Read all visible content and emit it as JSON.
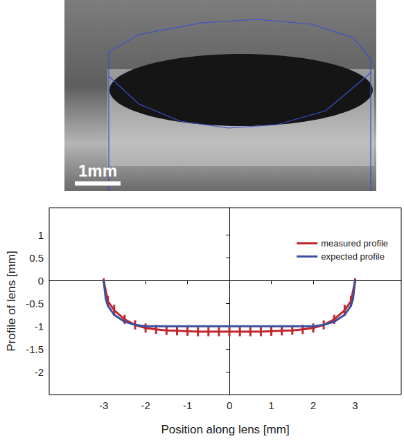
{
  "image": {
    "scale_bar_label": "1mm"
  },
  "chart_data": {
    "type": "line",
    "x_label": "Position along lens [mm]",
    "y_label": "Profile of lens [mm]",
    "xlim": [
      -4.3,
      4.1
    ],
    "ylim": [
      -2.5,
      1.6
    ],
    "xticks": [
      -3,
      -2,
      -1,
      0,
      1,
      2,
      3
    ],
    "yticks": [
      -2,
      -1.5,
      -1,
      -0.5,
      0,
      0.5,
      1
    ],
    "grid": false,
    "legend": "upper right",
    "series": [
      {
        "name": "measured profile",
        "color": "#c0272d",
        "line_style": "solid",
        "x": [
          -3,
          -2.9,
          -2.75,
          -2.5,
          -2.25,
          -2,
          -1.75,
          -1.5,
          -1.25,
          -1,
          -0.75,
          -0.5,
          -0.25,
          0,
          0.25,
          0.5,
          0.75,
          1,
          1.25,
          1.5,
          1.75,
          2,
          2.25,
          2.5,
          2.75,
          2.9,
          3
        ],
        "values": [
          0,
          -0.45,
          -0.65,
          -0.85,
          -0.97,
          -1.04,
          -1.07,
          -1.09,
          -1.1,
          -1.11,
          -1.12,
          -1.12,
          -1.12,
          -1.12,
          -1.12,
          -1.12,
          -1.12,
          -1.11,
          -1.1,
          -1.09,
          -1.07,
          -1.04,
          -0.97,
          -0.85,
          -0.65,
          -0.45,
          0
        ],
        "errors": [
          0.05,
          0.12,
          0.12,
          0.1,
          0.1,
          0.1,
          0.1,
          0.1,
          0.1,
          0.1,
          0.1,
          0.1,
          0.1,
          0.1,
          0.1,
          0.1,
          0.1,
          0.1,
          0.1,
          0.1,
          0.1,
          0.1,
          0.1,
          0.1,
          0.12,
          0.12,
          0.05
        ]
      },
      {
        "name": "expected profile",
        "color": "#3a4fa0",
        "line_style": "solid",
        "x": [
          -3,
          -2.95,
          -2.9,
          -2.75,
          -2.5,
          -2.25,
          -2,
          -1,
          0,
          1,
          2,
          2.25,
          2.5,
          2.75,
          2.9,
          2.95,
          3
        ],
        "values": [
          0,
          -0.4,
          -0.55,
          -0.75,
          -0.9,
          -0.97,
          -1,
          -1,
          -1,
          -1,
          -1,
          -0.97,
          -0.9,
          -0.75,
          -0.55,
          -0.4,
          0
        ]
      }
    ]
  }
}
